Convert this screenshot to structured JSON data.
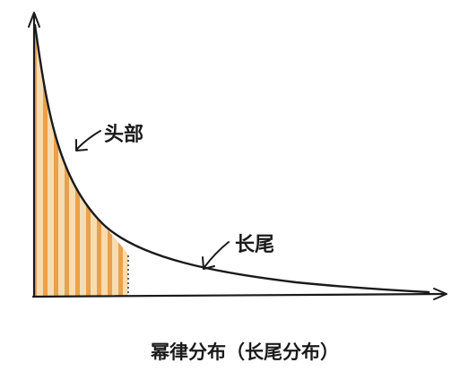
{
  "labels": {
    "head": "头部",
    "tail": "长尾",
    "caption": "幂律分布（长尾分布）"
  },
  "colors": {
    "ink": "#1a1a1a",
    "stripe": "#e9a14c",
    "stripe_light": "#f7dcb0"
  }
}
